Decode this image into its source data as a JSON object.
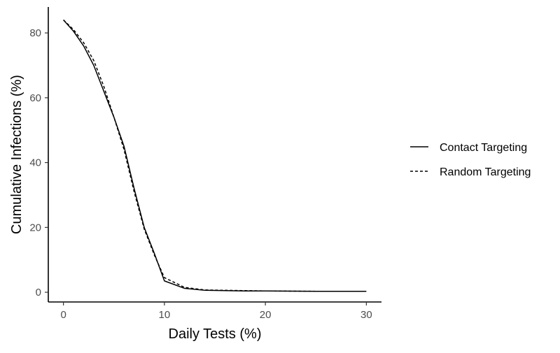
{
  "chart_data": {
    "type": "line",
    "title": "",
    "xlabel": "Daily Tests (%)",
    "ylabel": "Cumulative Infections (%)",
    "xlim": [
      -1.5,
      31.5
    ],
    "ylim": [
      -3,
      88
    ],
    "xticks": [
      0,
      10,
      20,
      30
    ],
    "yticks": [
      0,
      20,
      40,
      60,
      80
    ],
    "grid": false,
    "legend_position": "right",
    "series": [
      {
        "name": "Contact Targeting",
        "line_style": "solid",
        "color": "#000000",
        "x": [
          0,
          1,
          2,
          3,
          4,
          5,
          6,
          7,
          8,
          9,
          10,
          12,
          14,
          16,
          18,
          20,
          25,
          30
        ],
        "y": [
          84,
          80.5,
          76,
          70,
          62,
          54,
          45,
          32,
          20,
          12,
          3.5,
          1.2,
          0.6,
          0.5,
          0.4,
          0.4,
          0.3,
          0.3
        ]
      },
      {
        "name": "Random Targeting",
        "line_style": "dashed",
        "color": "#000000",
        "x": [
          0,
          1,
          2,
          3,
          4,
          5,
          6,
          7,
          8,
          9,
          10,
          12,
          14,
          16,
          18,
          20,
          25,
          30
        ],
        "y": [
          84,
          81,
          77,
          71.5,
          63.5,
          54,
          44,
          31,
          19.5,
          11.5,
          4.5,
          1.5,
          0.7,
          0.6,
          0.5,
          0.4,
          0.3,
          0.3
        ]
      }
    ]
  }
}
